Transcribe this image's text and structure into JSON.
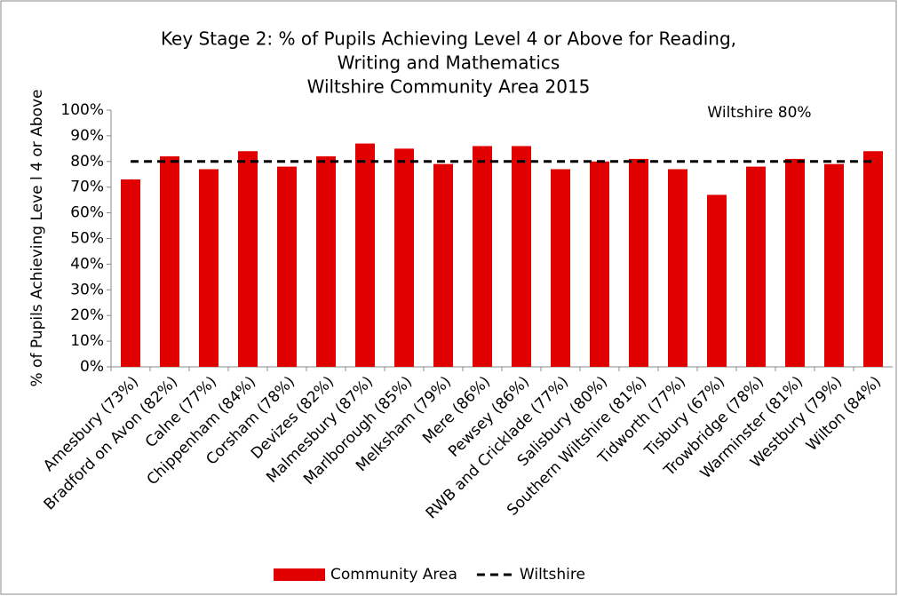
{
  "chart_data": {
    "type": "bar",
    "title": [
      "Key Stage 2: % of Pupils  Achieving Level 4 or Above for Reading,",
      "Writing and Mathematics",
      "Wiltshire Community Area 2015"
    ],
    "y_label": "% of Pupils Achieving Leve l 4 or Above",
    "annotation": "Wiltshire 80%",
    "categories": [
      "Amesbury (73%)",
      "Bradford on Avon (82%)",
      "Calne (77%)",
      "Chippenham (84%)",
      "Corsham (78%)",
      "Devizes (82%)",
      "Malmesbury (87%)",
      "Marlborough (85%)",
      "Melksham (79%)",
      "Mere (86%)",
      "Pewsey (86%)",
      "RWB and Cricklade (77%)",
      "Salisbury (80%)",
      "Southern Wiltshire (81%)",
      "Tidworth (77%)",
      "Tisbury (67%)",
      "Trowbridge (78%)",
      "Warminster (81%)",
      "Westbury (79%)",
      "Wilton (84%)"
    ],
    "series": [
      {
        "name": "Community Area",
        "color": "#e00000",
        "type": "bar",
        "values": [
          73,
          82,
          77,
          84,
          78,
          82,
          87,
          85,
          79,
          86,
          86,
          77,
          80,
          81,
          77,
          67,
          78,
          81,
          79,
          84
        ]
      },
      {
        "name": "Wiltshire",
        "color": "#000000",
        "type": "line",
        "dashed": true,
        "values": [
          80,
          80,
          80,
          80,
          80,
          80,
          80,
          80,
          80,
          80,
          80,
          80,
          80,
          80,
          80,
          80,
          80,
          80,
          80,
          80
        ]
      }
    ],
    "ylim": [
      0,
      100
    ],
    "yticks": [
      {
        "value": 0,
        "label": "0%"
      },
      {
        "value": 10,
        "label": "10%"
      },
      {
        "value": 20,
        "label": "20%"
      },
      {
        "value": 30,
        "label": "30%"
      },
      {
        "value": 40,
        "label": "40%"
      },
      {
        "value": 50,
        "label": "50%"
      },
      {
        "value": 60,
        "label": "60%"
      },
      {
        "value": 70,
        "label": "70%"
      },
      {
        "value": 80,
        "label": "80%"
      },
      {
        "value": 90,
        "label": "90%"
      },
      {
        "value": 100,
        "label": "100%"
      }
    ],
    "legend": "bottom"
  }
}
